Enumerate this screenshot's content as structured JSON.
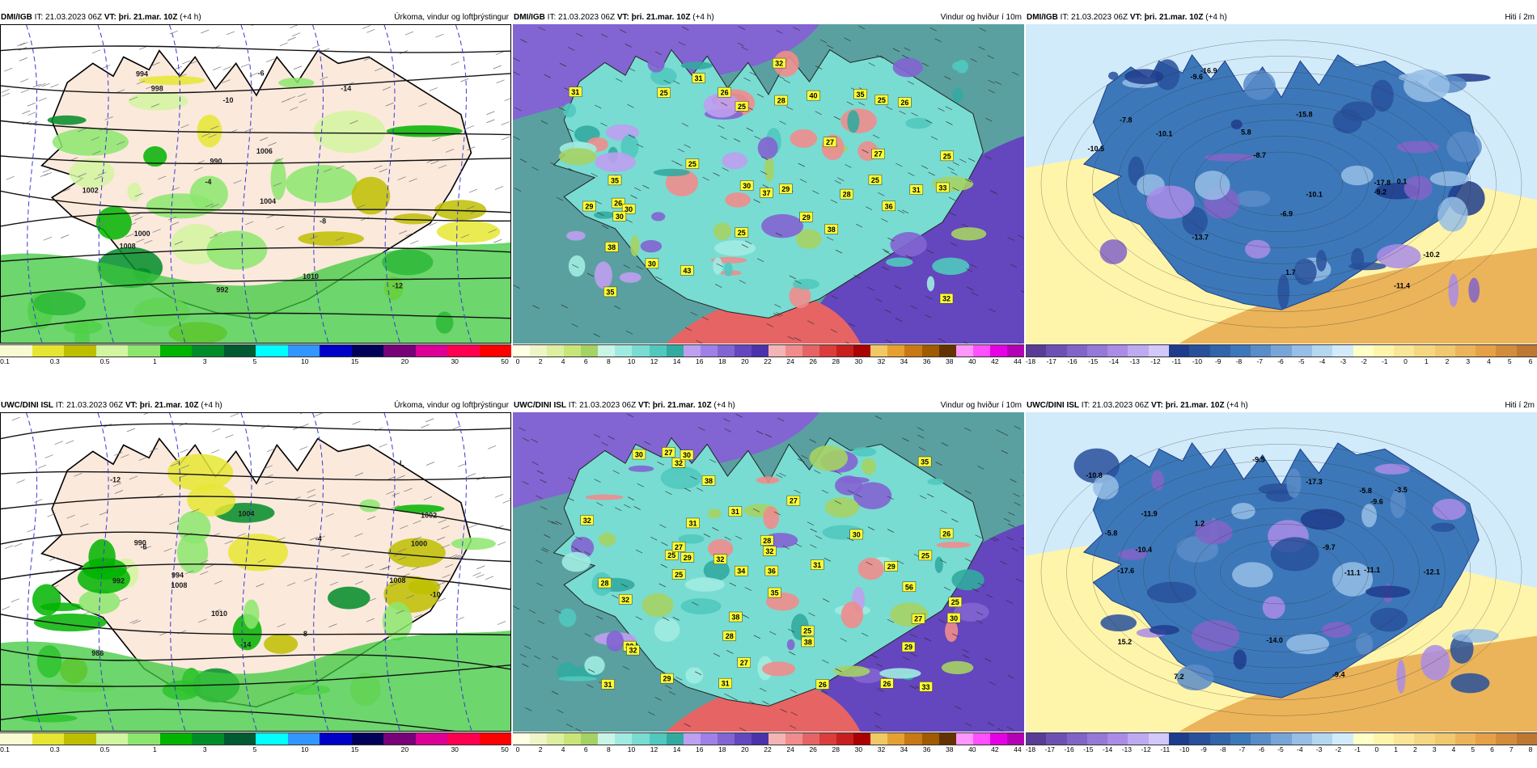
{
  "rows": [
    {
      "source": "DMI/IGB",
      "it": "IT: 21.03.2023 06Z",
      "vt": "VT: þri. 21.mar. 10Z",
      "lead": "(+4 h)",
      "panels": [
        {
          "id": "precip",
          "title": "Úrkoma, vindur og loftþrýstingur"
        },
        {
          "id": "wind",
          "title": "Vindur og hviður í 10m"
        },
        {
          "id": "temp",
          "title": "Hiti í 2m"
        }
      ],
      "labels": {
        "precip": [
          "1008",
          "1010",
          "1004",
          "1002",
          "998",
          "994",
          "992",
          "990",
          "1000",
          "1006",
          "-10",
          "-12",
          "-14",
          "-8",
          "-6",
          "-4"
        ],
        "wind": [
          "30",
          "38",
          "36",
          "31",
          "33",
          "31",
          "25",
          "25",
          "26",
          "35",
          "32",
          "38",
          "43",
          "27",
          "29",
          "28",
          "29",
          "26",
          "27",
          "35",
          "25",
          "37",
          "28",
          "26",
          "29",
          "31",
          "25",
          "30",
          "25",
          "30",
          "40",
          "30",
          "35",
          "25",
          "25",
          "32"
        ],
        "temp": [
          "-10.1",
          "-7.8",
          "-8.7",
          "-9.6",
          "-13.7",
          "-15.8",
          "-10.5",
          "-10.1",
          "-10.2",
          "-9.2",
          "-16.9",
          "-17.8",
          "-11.4",
          "0.1",
          "-6.9",
          "1.7",
          "5.8"
        ]
      }
    },
    {
      "source": "UWC/DINI ISL",
      "it": "IT: 21.03.2023 06Z",
      "vt": "VT: þri. 21.mar. 10Z",
      "lead": "(+4 h)",
      "panels": [
        {
          "id": "precip",
          "title": "Úrkoma, vindur og loftþrýstingur"
        },
        {
          "id": "wind",
          "title": "Vindur og hviður í 10m"
        },
        {
          "id": "temp",
          "title": "Hiti í 2m"
        }
      ],
      "labels": {
        "precip": [
          "1010",
          "1008",
          "1008",
          "1004",
          "992",
          "994",
          "990",
          "986",
          "1002",
          "1000",
          "-14",
          "-12",
          "-10",
          "-8",
          "-6",
          "-4",
          "L"
        ],
        "wind": [
          "25",
          "30",
          "25",
          "38",
          "27",
          "26",
          "38",
          "31",
          "29",
          "33",
          "32",
          "27",
          "29",
          "31",
          "28",
          "35",
          "27",
          "32",
          "38",
          "29",
          "27",
          "29",
          "32",
          "32",
          "31",
          "26",
          "25",
          "30",
          "35",
          "33",
          "26",
          "36",
          "32",
          "31",
          "27",
          "30",
          "25",
          "32",
          "30",
          "25",
          "34",
          "28",
          "56",
          "28",
          "31"
        ],
        "temp": [
          "-5.8",
          "-9.5",
          "-9.6",
          "-11.9",
          "-11.1",
          "-10.4",
          "-14.0",
          "-11.1",
          "-9.4",
          "-10.8",
          "-9.7",
          "-17.3",
          "-17.6",
          "-12.1",
          "1.2",
          "-5.8",
          "-3.5",
          "15.2",
          "7.2"
        ]
      }
    }
  ],
  "legends": {
    "precip": {
      "colors": [
        "#fafad2",
        "#e6e632",
        "#bebe00",
        "#d2f5a0",
        "#8ce66e",
        "#00b400",
        "#008c28",
        "#005a32",
        "#00ffff",
        "#3296ff",
        "#0000c8",
        "#00005a",
        "#780078",
        "#dc0096",
        "#ff0050",
        "#ff0000"
      ],
      "ticks": [
        "0.1",
        "0.3",
        "0.5",
        "1",
        "3",
        "5",
        "10",
        "15",
        "20",
        "30",
        "50"
      ]
    },
    "wind": {
      "colors": [
        "#ffffe6",
        "#f0f5c8",
        "#dcf0a0",
        "#c8e678",
        "#a5d264",
        "#c8f5e6",
        "#a0ebe1",
        "#78dcd2",
        "#50c8be",
        "#32aaa0",
        "#be9ff0",
        "#a080e6",
        "#8264d2",
        "#6446be",
        "#4b32aa",
        "#f5b4b4",
        "#f08c8c",
        "#e66464",
        "#dc3c3c",
        "#c81e1e",
        "#aa0000",
        "#f0c864",
        "#e6a032",
        "#c87814",
        "#a05a00",
        "#643200",
        "#ff96ff",
        "#ff50ff",
        "#e600e6",
        "#b400b4"
      ],
      "ticks": [
        "0",
        "2",
        "4",
        "6",
        "8",
        "10",
        "12",
        "14",
        "16",
        "18",
        "20",
        "22",
        "24",
        "26",
        "28",
        "30",
        "32",
        "34",
        "36",
        "38",
        "40",
        "42",
        "44"
      ]
    },
    "temp": {
      "colors": [
        "#5a3c96",
        "#6e50b4",
        "#8264c8",
        "#9678d7",
        "#aa8ce6",
        "#beaaf0",
        "#d2c8fa",
        "#1e3c8c",
        "#28509b",
        "#3264aa",
        "#3c78b9",
        "#5a8cc8",
        "#78a5d7",
        "#96bee6",
        "#b4d7f0",
        "#d2ebfa",
        "#ffffc8",
        "#fff5aa",
        "#fae696",
        "#f5d782",
        "#f0c86e",
        "#ebb45a",
        "#e6a046",
        "#d28c3c",
        "#be7832"
      ],
      "ticks": [
        "-18",
        "-17",
        "-16",
        "-15",
        "-14",
        "-13",
        "-12",
        "-11",
        "-10",
        "-9",
        "-8",
        "-7",
        "-6",
        "-5",
        "-4",
        "-3",
        "-2",
        "-1",
        "0",
        "1",
        "2",
        "3",
        "4",
        "5",
        "6"
      ],
      "ticks2": [
        "-18",
        "-17",
        "-16",
        "-15",
        "-14",
        "-13",
        "-12",
        "-11",
        "-10",
        "-9",
        "-8",
        "-7",
        "-6",
        "-5",
        "-4",
        "-3",
        "-2",
        "-1",
        "0",
        "1",
        "2",
        "3",
        "4",
        "5",
        "6",
        "7",
        "8"
      ]
    }
  }
}
